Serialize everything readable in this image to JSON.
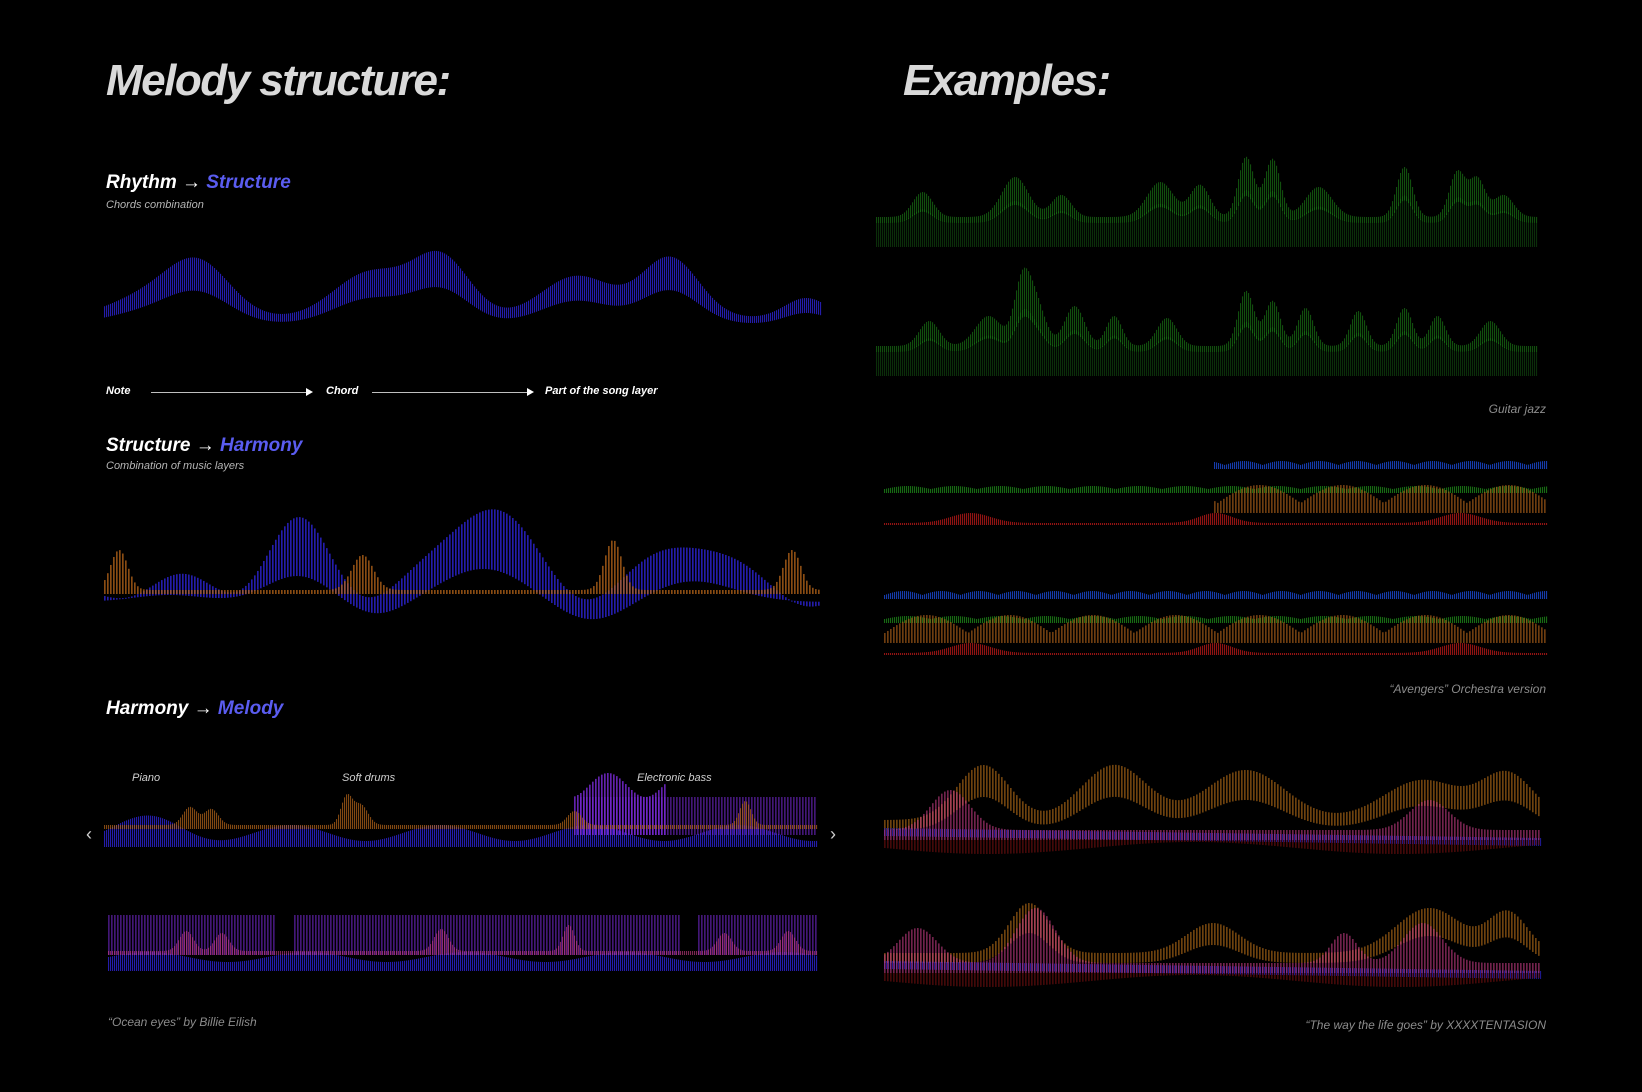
{
  "left": {
    "title": "Melody structure:",
    "rhythm": {
      "from": "Rhythm",
      "arrow": "→",
      "to": "Structure",
      "subtitle": "Chords combination"
    },
    "flow": {
      "note": "Note",
      "chord": "Chord",
      "layer": "Part of the song layer"
    },
    "structure": {
      "from": "Structure",
      "arrow": "→",
      "to": "Harmony",
      "subtitle": "Combination of music layers"
    },
    "harmony": {
      "from": "Harmony",
      "arrow": "→",
      "to": "Melody"
    },
    "instruments": {
      "piano": "Piano",
      "drums": "Soft drums",
      "bass": "Electronic bass"
    },
    "carousel": {
      "prev": "‹",
      "next": "›"
    },
    "caption": "“Ocean eyes” by Billie Eilish"
  },
  "right": {
    "title": "Examples:",
    "guitar_caption": "Guitar jazz",
    "avengers_caption": "“Avengers” Orchestra version",
    "xxx_caption": "“The way the life goes” by XXXXTENTASION"
  },
  "colors": {
    "accent": "#5a5cf0",
    "blue": "#2a22c8",
    "green": "#1f8f1a",
    "orange": "#b8661a",
    "red": "#c01a1a",
    "purple": "#7a2ad8",
    "pink": "#d0408a"
  }
}
